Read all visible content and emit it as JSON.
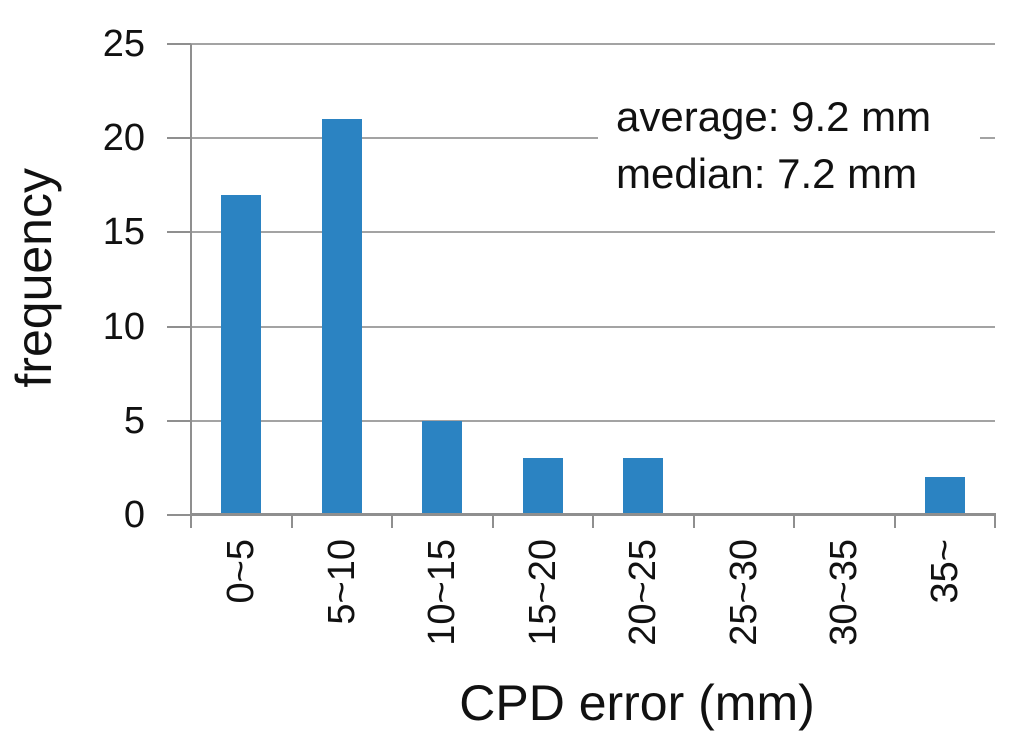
{
  "chart_data": {
    "type": "bar",
    "categories": [
      "0~5",
      "5~10",
      "10~15",
      "15~20",
      "20~25",
      "25~30",
      "30~35",
      "35~"
    ],
    "values": [
      17,
      21,
      5,
      3,
      3,
      0,
      0,
      2
    ],
    "title": "",
    "xlabel": "CPD error (mm)",
    "ylabel": "frequency",
    "ylim": [
      0,
      25
    ],
    "yticks": [
      0,
      5,
      10,
      15,
      20,
      25
    ],
    "grid": true,
    "legend": "none",
    "annotation": {
      "average_line": "average: 9.2 mm",
      "median_line": "median: 7.2 mm"
    },
    "colors": {
      "bar": "#2b83c2",
      "gridline": "#a3a3a3",
      "axis": "#8f8f8f",
      "text": "#111111",
      "background": "#ffffff"
    }
  }
}
